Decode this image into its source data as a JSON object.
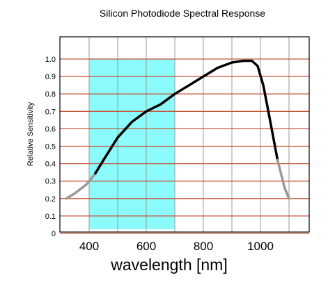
{
  "chart_data": {
    "type": "line",
    "title": "Silicon Photodiode Spectral Response",
    "xlabel": "wavelength [nm]",
    "ylabel": "Relative Sensitivity",
    "xlim": [
      300,
      1150
    ],
    "ylim": [
      0,
      1.05
    ],
    "x_ticks": [
      "400",
      "600",
      "800",
      "1000"
    ],
    "x_tick_values": [
      400,
      600,
      800,
      1000
    ],
    "y_ticks": [
      "0",
      "0.1",
      "0.2",
      "0.3",
      "0.4",
      "0.5",
      "0.6",
      "0.7",
      "0.8",
      "0.9",
      "1.0"
    ],
    "y_tick_values": [
      0,
      0.1,
      0.2,
      0.3,
      0.4,
      0.5,
      0.6,
      0.7,
      0.8,
      0.9,
      1.0
    ],
    "grid": true,
    "highlight_band": {
      "x_range": [
        400,
        700
      ],
      "y_range": [
        0,
        1.0
      ],
      "color": "#8cfbfb"
    },
    "colors": {
      "hgrid": "#c8553a",
      "vgrid": "#999999",
      "curve": "#000000",
      "curve_faded": "#999999"
    },
    "series": [
      {
        "x": [
          320,
          350,
          390,
          420,
          450,
          500,
          550,
          600,
          650,
          700,
          750,
          800,
          850,
          900,
          940,
          970,
          990,
          1010,
          1030,
          1060,
          1085,
          1100
        ],
        "y": [
          0.2,
          0.23,
          0.28,
          0.34,
          0.42,
          0.55,
          0.64,
          0.7,
          0.74,
          0.8,
          0.85,
          0.9,
          0.95,
          0.98,
          0.99,
          0.99,
          0.96,
          0.85,
          0.68,
          0.42,
          0.26,
          0.2
        ]
      }
    ]
  }
}
